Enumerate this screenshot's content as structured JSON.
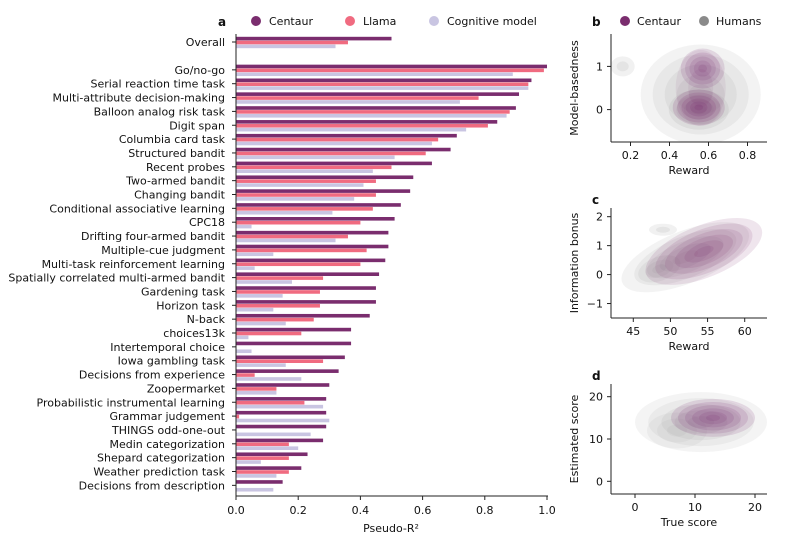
{
  "colors": {
    "centaur": "#7a2d6e",
    "llama": "#f06b80",
    "cognitive": "#c9c5e2",
    "humans": "#8a8a8a",
    "axis": "#222222"
  },
  "chart_data": [
    {
      "panel": "a",
      "type": "bar",
      "orientation": "horizontal",
      "xlabel": "Pseudo-R²",
      "xlim": [
        0,
        1
      ],
      "xticks": [
        "0.0",
        "0.2",
        "0.4",
        "0.6",
        "0.8",
        "1.0"
      ],
      "legend_position": "top",
      "categories": [
        "Overall",
        "Go/no-go",
        "Serial reaction time task",
        "Multi-attribute decision-making",
        "Balloon analog risk task",
        "Digit span",
        "Columbia card task",
        "Structured bandit",
        "Recent probes",
        "Two-armed bandit",
        "Changing bandit",
        "Conditional associative learning",
        "CPC18",
        "Drifting four-armed bandit",
        "Multiple-cue judgment",
        "Multi-task reinforcement learning",
        "Spatially correlated multi-armed bandit",
        "Gardening task",
        "Horizon task",
        "N-back",
        "choices13k",
        "Intertemporal choice",
        "Iowa gambling task",
        "Decisions from experience",
        "Zoopermarket",
        "Probabilistic instrumental learning",
        "Grammar judgement",
        "THINGS odd-one-out",
        "Medin categorization",
        "Shepard categorization",
        "Weather prediction task",
        "Decisions from description"
      ],
      "series": [
        {
          "name": "Centaur",
          "values": [
            0.5,
            1.0,
            0.95,
            0.91,
            0.9,
            0.84,
            0.71,
            0.69,
            0.63,
            0.57,
            0.56,
            0.53,
            0.51,
            0.49,
            0.49,
            0.48,
            0.46,
            0.45,
            0.45,
            0.43,
            0.37,
            0.37,
            0.35,
            0.33,
            0.3,
            0.29,
            0.29,
            0.29,
            0.28,
            0.23,
            0.21,
            0.15
          ]
        },
        {
          "name": "Llama",
          "values": [
            0.36,
            0.99,
            0.94,
            0.78,
            0.88,
            0.81,
            0.65,
            0.61,
            0.5,
            0.45,
            0.45,
            0.44,
            0.4,
            0.36,
            0.42,
            0.4,
            0.28,
            0.27,
            0.27,
            0.25,
            0.21,
            0.0,
            0.28,
            0.06,
            0.13,
            0.22,
            0.01,
            0.0,
            0.17,
            0.17,
            0.17,
            0.0
          ]
        },
        {
          "name": "Cognitive model",
          "values": [
            0.32,
            0.89,
            0.94,
            0.72,
            0.87,
            0.74,
            0.63,
            0.51,
            0.44,
            0.41,
            0.38,
            0.31,
            0.05,
            0.32,
            0.12,
            0.06,
            0.18,
            0.15,
            0.12,
            0.16,
            0.04,
            0.05,
            0.16,
            0.21,
            0.13,
            0.28,
            0.3,
            0.24,
            0.2,
            0.08,
            0.13,
            0.12
          ]
        }
      ]
    },
    {
      "panel": "b",
      "type": "density",
      "xlabel": "Reward",
      "ylabel": "Model-basedness",
      "xlim": [
        0.1,
        0.9
      ],
      "ylim": [
        -0.75,
        1.75
      ],
      "xticks": [
        "0.2",
        "0.4",
        "0.6",
        "0.8"
      ],
      "yticks": [
        "0",
        "1"
      ],
      "legend_position": "top",
      "legend": [
        "Centaur",
        "Humans"
      ],
      "series": [
        {
          "name": "Humans",
          "centers": [
            [
              0.55,
              0.0
            ],
            [
              0.55,
              0.9
            ],
            [
              0.15,
              1.0
            ]
          ]
        },
        {
          "name": "Centaur",
          "centers": [
            [
              0.55,
              0.05
            ],
            [
              0.57,
              0.95
            ]
          ]
        }
      ]
    },
    {
      "panel": "c",
      "type": "density",
      "xlabel": "Reward",
      "ylabel": "Information bonus",
      "xlim": [
        42,
        63
      ],
      "ylim": [
        -1.5,
        2.3
      ],
      "xticks": [
        "45",
        "50",
        "55",
        "60"
      ],
      "yticks": [
        "−1",
        "0",
        "1",
        "2"
      ],
      "series": [
        {
          "name": "Humans",
          "centers": [
            [
              49,
              0.3
            ],
            [
              52,
              0.9
            ],
            [
              49,
              1.6
            ]
          ]
        },
        {
          "name": "Centaur",
          "centers": [
            [
              54.5,
              0.9
            ]
          ]
        }
      ]
    },
    {
      "panel": "d",
      "type": "density",
      "xlabel": "True score",
      "ylabel": "Estimated score",
      "xlim": [
        -4,
        22
      ],
      "ylim": [
        -3,
        23
      ],
      "xticks": [
        "0",
        "10",
        "20"
      ],
      "yticks": [
        "0",
        "10",
        "20"
      ],
      "series": [
        {
          "name": "Humans",
          "centers": [
            [
              10,
              13
            ],
            [
              5,
              10
            ],
            [
              12,
              17
            ]
          ]
        },
        {
          "name": "Centaur",
          "centers": [
            [
              13,
              15
            ]
          ]
        }
      ]
    }
  ]
}
